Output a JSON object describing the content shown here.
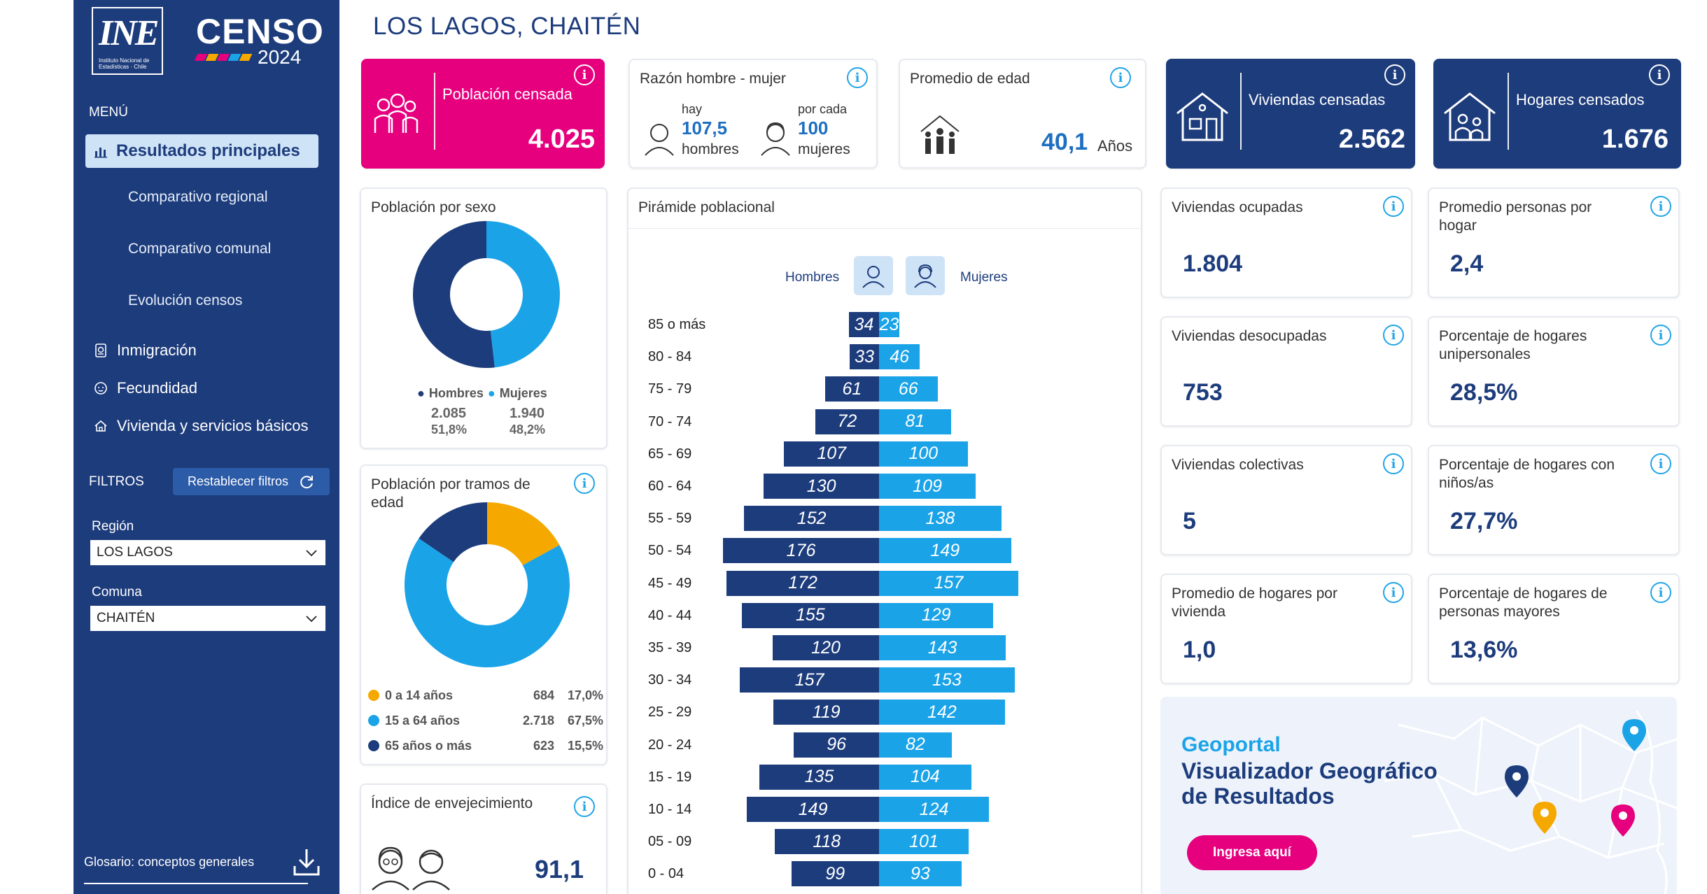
{
  "sidebar": {
    "logo_ine": "INE",
    "logo_ine_sub": "Instituto Nacional de Estadísticas · Chile",
    "logo_censo": "CENSO",
    "logo_censo_year": "2024",
    "menu_title": "MENÚ",
    "active_item": "Resultados principales",
    "subitems": [
      "Comparativo regional",
      "Comparativo comunal",
      "Evolución censos"
    ],
    "items": [
      {
        "label": "Inmigración",
        "icon": "passport-icon"
      },
      {
        "label": "Fecundidad",
        "icon": "baby-icon"
      },
      {
        "label": "Vivienda y servicios básicos",
        "icon": "house-icon"
      }
    ],
    "filters_title": "FILTROS",
    "reset_label": "Restablecer filtros",
    "region_label": "Región",
    "region_value": "LOS LAGOS",
    "comuna_label": "Comuna",
    "comuna_value": "CHAITÉN",
    "glosario": "Glosario: conceptos generales"
  },
  "header": {
    "title": "LOS LAGOS, CHAITÉN"
  },
  "kpis": {
    "poblacion": {
      "label": "Población censada",
      "value": "4.025"
    },
    "razon": {
      "label": "Razón hombre - mujer",
      "hay": "hay",
      "hombres_value": "107,5",
      "hombres_label": "hombres",
      "por_cada": "por cada",
      "mujeres_value": "100",
      "mujeres_label": "mujeres"
    },
    "edad": {
      "label": "Promedio de edad",
      "value": "40,1",
      "unit": "Años"
    },
    "viviendas": {
      "label": "Viviendas censadas",
      "value": "2.562"
    },
    "hogares": {
      "label": "Hogares censados",
      "value": "1.676"
    }
  },
  "sexo": {
    "title": "Población por sexo",
    "hombres": {
      "label": "Hombres",
      "value": "2.085",
      "pct": "51,8%",
      "share": 0.518,
      "color": "#1d3c7c"
    },
    "mujeres": {
      "label": "Mujeres",
      "value": "1.940",
      "pct": "48,2%",
      "share": 0.482,
      "color": "#1ba3e8"
    }
  },
  "tramos": {
    "title": "Población por tramos de edad",
    "rows": [
      {
        "label": "0 a 14 años",
        "value": "684",
        "pct": "17,0%",
        "share": 0.17,
        "color": "#f5a800"
      },
      {
        "label": "15 a 64 años",
        "value": "2.718",
        "pct": "67,5%",
        "share": 0.675,
        "color": "#1ba3e8"
      },
      {
        "label": "65 años o más",
        "value": "623",
        "pct": "15,5%",
        "share": 0.155,
        "color": "#1d3c7c"
      }
    ]
  },
  "envejecimiento": {
    "title": "Índice de envejecimiento",
    "value": "91,1"
  },
  "piramide": {
    "title": "Pirámide poblacional",
    "hombres_label": "Hombres",
    "mujeres_label": "Mujeres",
    "rows": [
      {
        "age": "85 o más",
        "h": 34,
        "m": 23
      },
      {
        "age": "80 - 84",
        "h": 33,
        "m": 46
      },
      {
        "age": "75 - 79",
        "h": 61,
        "m": 66
      },
      {
        "age": "70 - 74",
        "h": 72,
        "m": 81
      },
      {
        "age": "65 - 69",
        "h": 107,
        "m": 100
      },
      {
        "age": "60 - 64",
        "h": 130,
        "m": 109
      },
      {
        "age": "55 - 59",
        "h": 152,
        "m": 138
      },
      {
        "age": "50 - 54",
        "h": 176,
        "m": 149
      },
      {
        "age": "45 - 49",
        "h": 172,
        "m": 157
      },
      {
        "age": "40 - 44",
        "h": 155,
        "m": 129
      },
      {
        "age": "35 - 39",
        "h": 120,
        "m": 143
      },
      {
        "age": "30 - 34",
        "h": 157,
        "m": 153
      },
      {
        "age": "25 - 29",
        "h": 119,
        "m": 142
      },
      {
        "age": "20 - 24",
        "h": 96,
        "m": 82
      },
      {
        "age": "15 - 19",
        "h": 135,
        "m": 104
      },
      {
        "age": "10 - 14",
        "h": 149,
        "m": 124
      },
      {
        "age": "05 - 09",
        "h": 118,
        "m": 101
      },
      {
        "age": "0 - 04",
        "h": 99,
        "m": 93
      }
    ]
  },
  "right_cards": [
    {
      "title": "Viviendas ocupadas",
      "value": "1.804"
    },
    {
      "title": "Promedio personas por hogar",
      "value": "2,4"
    },
    {
      "title": "Viviendas desocupadas",
      "value": "753"
    },
    {
      "title": "Porcentaje de hogares unipersonales",
      "value": "28,5%"
    },
    {
      "title": "Viviendas colectivas",
      "value": "5"
    },
    {
      "title": "Porcentaje de hogares con niños/as",
      "value": "27,7%"
    },
    {
      "title": "Promedio de hogares por vivienda",
      "value": "1,0"
    },
    {
      "title": "Porcentaje de hogares de personas mayores",
      "value": "13,6%"
    }
  ],
  "geoportal": {
    "title1": "Geoportal",
    "title2": "Visualizador Geográfico de Resultados",
    "button": "Ingresa aquí"
  },
  "colors": {
    "navy": "#1d3c7c",
    "sky": "#1ba3e8",
    "pink": "#e6007e",
    "orange": "#f5a800"
  }
}
